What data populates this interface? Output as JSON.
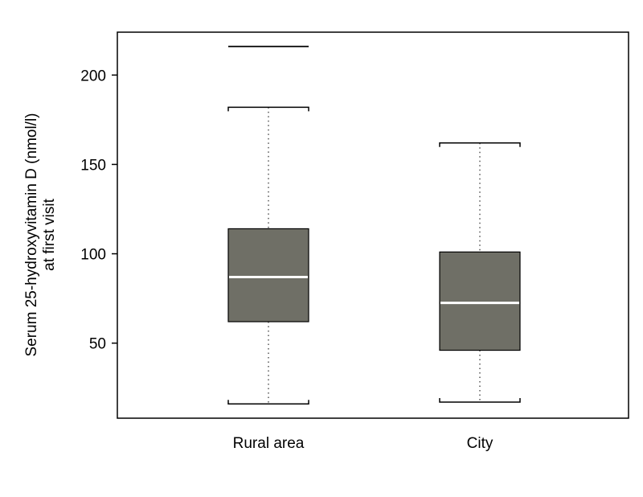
{
  "chart_data": {
    "type": "boxplot",
    "title": "",
    "xlabel": "",
    "ylabel_lines": [
      "Serum 25-hydroxyvitamin D (nmol/l)",
      "at first visit"
    ],
    "categories": [
      "Rural area",
      "City"
    ],
    "ylim": [
      8,
      224
    ],
    "yticks": [
      50,
      100,
      150,
      200
    ],
    "grid": false,
    "box_color": "#6f6f66",
    "median_color": "#ffffff",
    "boxes": [
      {
        "name": "Rural area",
        "whisker_low": 16,
        "q1": 62,
        "median": 87,
        "q3": 114,
        "whisker_high": 182,
        "outliers": [
          216
        ]
      },
      {
        "name": "City",
        "whisker_low": 17,
        "q1": 46,
        "median": 72.5,
        "q3": 101,
        "whisker_high": 162,
        "outliers": []
      }
    ]
  }
}
